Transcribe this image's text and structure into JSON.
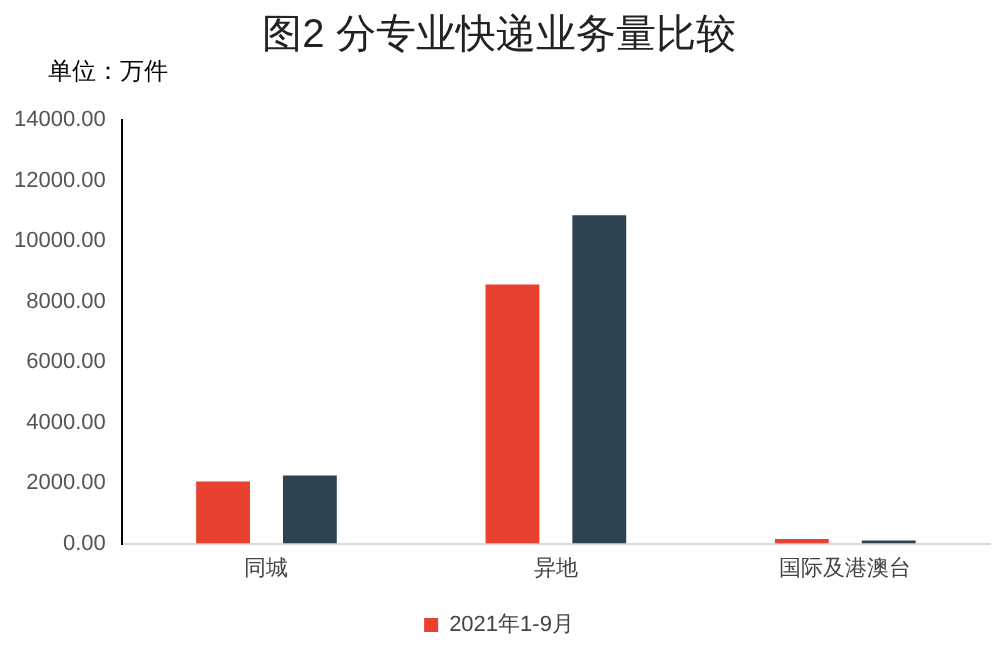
{
  "chart_data": {
    "type": "bar",
    "title": "图2 分专业快递业务量比较",
    "ylabel": "单位：万件",
    "categories": [
      "同城",
      "异地",
      "国际及港澳台"
    ],
    "series": [
      {
        "name": "2021年1-9月",
        "color": "#e8412f",
        "values": [
          2050,
          8560,
          150
        ]
      },
      {
        "color": "#2d4352",
        "values": [
          2250,
          10850,
          100
        ]
      }
    ],
    "ylim": [
      0,
      14000
    ],
    "yticks": [
      {
        "value": 0,
        "label": "0.00"
      },
      {
        "value": 2000,
        "label": "2000.00"
      },
      {
        "value": 4000,
        "label": "4000.00"
      },
      {
        "value": 6000,
        "label": "6000.00"
      },
      {
        "value": 8000,
        "label": "8000.00"
      },
      {
        "value": 10000,
        "label": "10000.00"
      },
      {
        "value": 12000,
        "label": "12000.00"
      },
      {
        "value": 14000,
        "label": "14000.00"
      }
    ],
    "grid": false,
    "legend": "bottom"
  }
}
